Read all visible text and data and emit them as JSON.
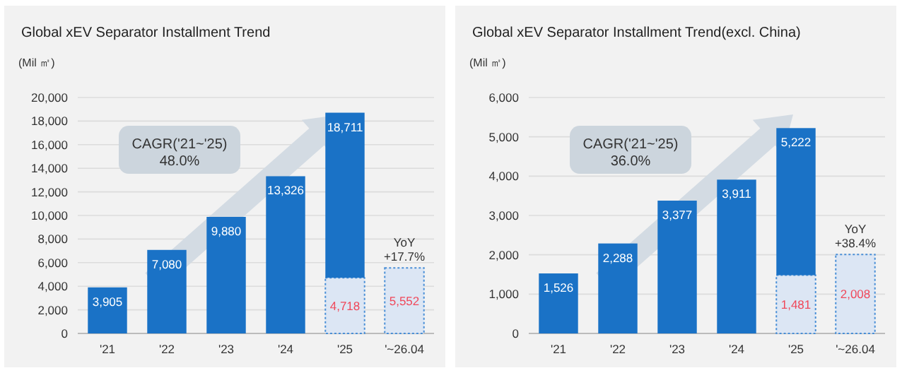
{
  "chart_data": [
    {
      "type": "bar",
      "title": "Global xEV Separator Installment Trend",
      "ylabel": "(Mil ㎡)",
      "categories": [
        "'21",
        "'22",
        "'23",
        "'24",
        "'25",
        "'~26.04"
      ],
      "stacked": true,
      "grid": "y",
      "series": [
        {
          "color": "#dce6f4",
          "values": [
            null,
            null,
            null,
            null,
            4718,
            5552
          ],
          "value_labels": [
            null,
            null,
            null,
            null,
            "4,718",
            "5,552"
          ]
        },
        {
          "color": "#1a72c6",
          "values": [
            3905,
            7080,
            9880,
            13326,
            13993,
            null
          ],
          "value_labels": [
            "3,905",
            "7,080",
            "9,880",
            "13,326",
            null,
            null
          ]
        }
      ],
      "totals": [
        null,
        null,
        null,
        null,
        "18,711",
        null
      ],
      "ylim": [
        0,
        20000
      ],
      "yticks": [
        0,
        {
          "value": 2000,
          "label": "2,000"
        },
        {
          "value": 4000,
          "label": "4,000"
        },
        {
          "value": 6000,
          "label": "6,000"
        },
        {
          "value": 8000,
          "label": "8,000"
        },
        {
          "value": 10000,
          "label": "10,000"
        },
        {
          "value": 12000,
          "label": "12,000"
        },
        {
          "value": 14000,
          "label": "14,000"
        },
        {
          "value": 16000,
          "label": "16,000"
        },
        {
          "value": 18000,
          "label": "18,000"
        },
        {
          "value": 20000,
          "label": "20,000"
        }
      ],
      "annotations": [
        "CAGR('21~'25)",
        "48.0%",
        {
          "text": "YoY",
          "x": "'~26.04",
          "y": 5552
        },
        {
          "text": "+17.7%",
          "x": "'~26.04",
          "y": 5552
        }
      ]
    },
    {
      "type": "bar",
      "title": "Global xEV Separator Installment Trend(excl. China)",
      "ylabel": "(Mil ㎡)",
      "categories": [
        "'21",
        "'22",
        "'23",
        "'24",
        "'25",
        "'~26.04"
      ],
      "stacked": true,
      "grid": "y",
      "series": [
        {
          "color": "#dce6f4",
          "values": [
            null,
            null,
            null,
            null,
            1481,
            2008
          ],
          "value_labels": [
            null,
            null,
            null,
            null,
            "1,481",
            "2,008"
          ]
        },
        {
          "color": "#1a72c6",
          "values": [
            1526,
            2288,
            3377,
            3911,
            3741,
            null
          ],
          "value_labels": [
            "1,526",
            "2,288",
            "3,377",
            "3,911",
            null,
            null
          ]
        }
      ],
      "totals": [
        null,
        null,
        null,
        null,
        "5,222",
        null
      ],
      "ylim": [
        0,
        6000
      ],
      "yticks": [
        0,
        {
          "value": 1000,
          "label": "1,000"
        },
        {
          "value": 2000,
          "label": "2,000"
        },
        {
          "value": 3000,
          "label": "3,000"
        },
        {
          "value": 4000,
          "label": "4,000"
        },
        {
          "value": 5000,
          "label": "5,000"
        },
        {
          "value": 6000,
          "label": "6,000"
        }
      ],
      "annotations": [
        "CAGR('21~'25)",
        "36.0%",
        {
          "text": "YoY",
          "x": "'~26.04",
          "y": 2008
        },
        {
          "text": "+38.4%",
          "x": "'~26.04",
          "y": 2008
        }
      ]
    }
  ]
}
